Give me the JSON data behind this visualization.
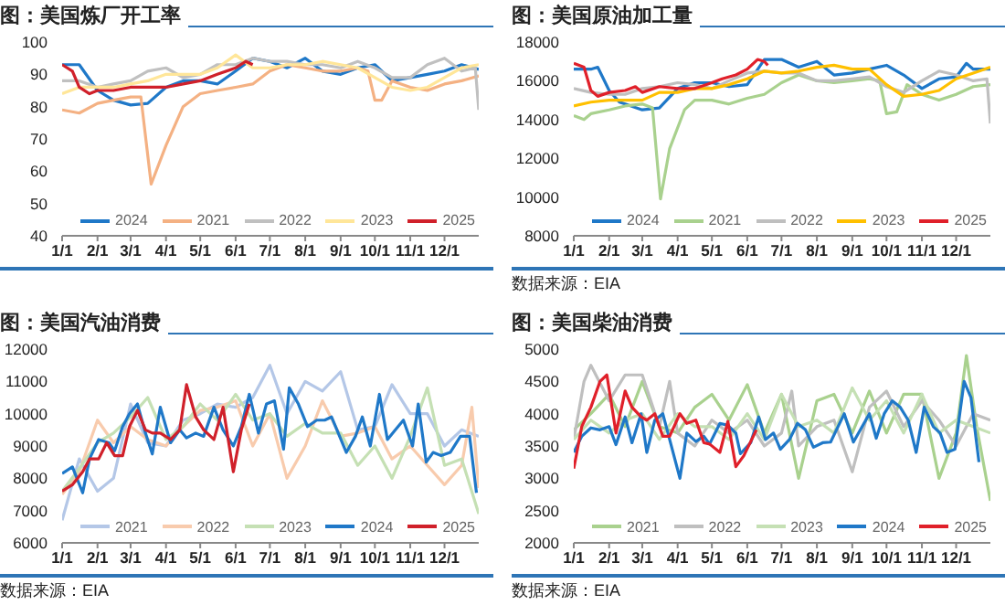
{
  "chart_data": [
    {
      "type": "line",
      "title": "图：美国炼厂开工率",
      "xlim": [
        "--01-01",
        "--12-31"
      ],
      "xticks": [
        {
          "value": "--01-01",
          "label": "1/1"
        },
        {
          "value": "--02-01",
          "label": "2/1"
        },
        {
          "value": "--03-01",
          "label": "3/1"
        },
        {
          "value": "--04-01",
          "label": "4/1"
        },
        {
          "value": "--05-01",
          "label": "5/1"
        },
        {
          "value": "--06-01",
          "label": "6/1"
        },
        {
          "value": "--07-01",
          "label": "7/1"
        },
        {
          "value": "--08-01",
          "label": "8/1"
        },
        {
          "value": "--09-01",
          "label": "9/1"
        },
        {
          "value": "--10-01",
          "label": "10/1"
        },
        {
          "value": "--11-01",
          "label": "11/1"
        },
        {
          "value": "--12-01",
          "label": "12/1"
        }
      ],
      "ylim": [
        40,
        100
      ],
      "yticks": [
        40,
        50,
        60,
        70,
        80,
        90,
        100
      ],
      "legend": "bottom",
      "series": [
        {
          "name": "2024",
          "color": "#1f78c8",
          "x": [
            "--01-01",
            "--01-16",
            "--02-01",
            "--02-15",
            "--03-01",
            "--03-16",
            "--04-01",
            "--04-16",
            "--05-01",
            "--05-16",
            "--06-01",
            "--06-16",
            "--07-01",
            "--07-16",
            "--08-01",
            "--08-16",
            "--09-01",
            "--09-16",
            "--10-01",
            "--10-16",
            "--11-01",
            "--11-16",
            "--12-01",
            "--12-16",
            "--12-31"
          ],
          "values": [
            93,
            93,
            85,
            82,
            80.5,
            81,
            86,
            88,
            88,
            87,
            91,
            95,
            94,
            92,
            95,
            91,
            90,
            92,
            93,
            88,
            89,
            90,
            91,
            93,
            91.5
          ]
        },
        {
          "name": "2021",
          "color": "#f4b183",
          "x": [
            "--01-01",
            "--01-16",
            "--02-01",
            "--02-15",
            "--03-01",
            "--03-10",
            "--03-19",
            "--04-01",
            "--04-16",
            "--05-01",
            "--05-16",
            "--06-01",
            "--06-16",
            "--07-01",
            "--07-16",
            "--08-01",
            "--08-16",
            "--09-01",
            "--09-16",
            "--09-25",
            "--10-01",
            "--10-07",
            "--10-16",
            "--11-01",
            "--11-16",
            "--12-01",
            "--12-16",
            "--12-31"
          ],
          "values": [
            79,
            78,
            81,
            82,
            83,
            83,
            56,
            68,
            80,
            84,
            85,
            86,
            87,
            91,
            93,
            92,
            91,
            91,
            92,
            91,
            82,
            82,
            88,
            86,
            85,
            87,
            88,
            89.5
          ]
        },
        {
          "name": "2022",
          "color": "#c0c0c0",
          "x": [
            "--01-01",
            "--01-16",
            "--02-01",
            "--02-15",
            "--03-01",
            "--03-16",
            "--04-01",
            "--04-16",
            "--05-01",
            "--05-16",
            "--06-01",
            "--06-16",
            "--07-01",
            "--07-16",
            "--08-01",
            "--08-16",
            "--09-01",
            "--09-16",
            "--10-01",
            "--10-16",
            "--11-01",
            "--11-16",
            "--12-01",
            "--12-16",
            "--12-28",
            "--12-31"
          ],
          "values": [
            88,
            88,
            86,
            87,
            88,
            91,
            92,
            89,
            90,
            93,
            93,
            95,
            94,
            94,
            93,
            93,
            92,
            94,
            92,
            89,
            89,
            93,
            95,
            91,
            92,
            79
          ]
        },
        {
          "name": "2023",
          "color": "#ffe699",
          "x": [
            "--01-01",
            "--01-16",
            "--02-01",
            "--02-15",
            "--03-01",
            "--03-16",
            "--04-01",
            "--04-16",
            "--05-01",
            "--05-16",
            "--06-01",
            "--06-16",
            "--07-01",
            "--07-16",
            "--08-01",
            "--08-16",
            "--09-01",
            "--09-16",
            "--10-01",
            "--10-16",
            "--11-01",
            "--11-16",
            "--12-01",
            "--12-16",
            "--12-31"
          ],
          "values": [
            84,
            86,
            86,
            86,
            87,
            88,
            90,
            90,
            90,
            92,
            96,
            92,
            92,
            93,
            93,
            94,
            93,
            92,
            89,
            86,
            85,
            86,
            89,
            92,
            93
          ]
        },
        {
          "name": "2025",
          "color": "#d0202a",
          "x": [
            "--01-01",
            "--01-10",
            "--01-16",
            "--01-25",
            "--02-01",
            "--02-15",
            "--03-01",
            "--03-16",
            "--04-01",
            "--04-16",
            "--05-01",
            "--05-16",
            "--06-01",
            "--06-10",
            "--06-16"
          ],
          "values": [
            93,
            91,
            86,
            84,
            85,
            85,
            86,
            86,
            86,
            87,
            88,
            90,
            92,
            94,
            93
          ]
        }
      ]
    },
    {
      "type": "line",
      "title": "图：美国原油加工量",
      "annotations": [
        "数据来源：EIA"
      ],
      "xlim": [
        "--01-01",
        "--12-31"
      ],
      "xticks": [
        {
          "value": "--01-01",
          "label": "1/1"
        },
        {
          "value": "--02-01",
          "label": "2/1"
        },
        {
          "value": "--03-01",
          "label": "3/1"
        },
        {
          "value": "--04-01",
          "label": "4/1"
        },
        {
          "value": "--05-01",
          "label": "5/1"
        },
        {
          "value": "--06-01",
          "label": "6/1"
        },
        {
          "value": "--07-01",
          "label": "7/1"
        },
        {
          "value": "--08-01",
          "label": "8/1"
        },
        {
          "value": "--09-01",
          "label": "9/1"
        },
        {
          "value": "--10-01",
          "label": "10/1"
        },
        {
          "value": "--11-01",
          "label": "11/1"
        },
        {
          "value": "--12-01",
          "label": "12/1"
        }
      ],
      "ylim": [
        8000,
        18000
      ],
      "yticks": [
        8000,
        10000,
        12000,
        14000,
        16000,
        18000
      ],
      "legend": "bottom",
      "series": [
        {
          "name": "2024",
          "color": "#1f78c8",
          "x": [
            "--01-01",
            "--01-16",
            "--01-22",
            "--02-01",
            "--02-10",
            "--02-15",
            "--03-01",
            "--03-16",
            "--04-01",
            "--04-16",
            "--05-01",
            "--05-16",
            "--06-01",
            "--06-16",
            "--07-01",
            "--07-16",
            "--08-01",
            "--08-16",
            "--09-01",
            "--09-16",
            "--10-01",
            "--10-16",
            "--11-01",
            "--11-16",
            "--12-01",
            "--12-10",
            "--12-16",
            "--12-31"
          ],
          "values": [
            16600,
            16600,
            16700,
            15500,
            14900,
            14800,
            14500,
            14600,
            15600,
            15900,
            15900,
            15700,
            15800,
            17100,
            17100,
            16700,
            17000,
            16300,
            16400,
            16600,
            16800,
            16300,
            15600,
            16100,
            16200,
            16900,
            16600,
            16600
          ]
        },
        {
          "name": "2021",
          "color": "#a9d18e",
          "x": [
            "--01-01",
            "--01-10",
            "--01-16",
            "--02-01",
            "--02-15",
            "--03-01",
            "--03-10",
            "--03-17",
            "--03-25",
            "--04-07",
            "--04-16",
            "--05-01",
            "--05-16",
            "--06-01",
            "--06-16",
            "--07-01",
            "--07-16",
            "--08-01",
            "--08-16",
            "--09-01",
            "--09-16",
            "--09-25",
            "--10-01",
            "--10-10",
            "--10-19",
            "--11-01",
            "--11-16",
            "--12-01",
            "--12-16",
            "--12-31"
          ],
          "values": [
            14200,
            14000,
            14300,
            14500,
            14700,
            14800,
            14600,
            9900,
            12500,
            14500,
            15000,
            15000,
            14800,
            15100,
            15300,
            15900,
            16300,
            16000,
            15900,
            16000,
            16100,
            16000,
            14300,
            14400,
            15800,
            15300,
            15000,
            15300,
            15700,
            15800
          ]
        },
        {
          "name": "2022",
          "color": "#bfbfbf",
          "x": [
            "--01-01",
            "--01-16",
            "--02-01",
            "--02-15",
            "--03-01",
            "--03-16",
            "--04-01",
            "--04-16",
            "--05-01",
            "--05-16",
            "--06-01",
            "--06-16",
            "--07-01",
            "--07-16",
            "--08-01",
            "--08-16",
            "--09-01",
            "--09-16",
            "--10-01",
            "--10-16",
            "--11-01",
            "--11-16",
            "--12-01",
            "--12-16",
            "--12-28",
            "--12-31"
          ],
          "values": [
            15600,
            15400,
            15300,
            15300,
            15600,
            15700,
            15900,
            15800,
            15600,
            16000,
            16400,
            16500,
            16400,
            16400,
            16000,
            16000,
            16100,
            16200,
            15700,
            15400,
            16000,
            16500,
            16300,
            16000,
            16100,
            13800
          ]
        },
        {
          "name": "2023",
          "color": "#ffc000",
          "x": [
            "--01-01",
            "--01-16",
            "--02-01",
            "--02-15",
            "--03-01",
            "--03-16",
            "--04-01",
            "--04-16",
            "--05-01",
            "--05-16",
            "--06-01",
            "--06-16",
            "--07-01",
            "--07-16",
            "--08-01",
            "--08-16",
            "--09-01",
            "--09-16",
            "--10-01",
            "--10-16",
            "--11-01",
            "--11-16",
            "--12-01",
            "--12-16",
            "--12-31"
          ],
          "values": [
            14700,
            14900,
            15000,
            15000,
            15000,
            15400,
            15400,
            15600,
            15600,
            15800,
            16100,
            16500,
            16400,
            16500,
            16700,
            16800,
            16600,
            16600,
            15800,
            15200,
            15300,
            15500,
            16100,
            16400,
            16700
          ]
        },
        {
          "name": "2025",
          "color": "#e0202a",
          "x": [
            "--01-01",
            "--01-10",
            "--01-16",
            "--01-22",
            "--02-01",
            "--02-15",
            "--02-24",
            "--03-01",
            "--03-16",
            "--04-01",
            "--04-16",
            "--05-01",
            "--05-10",
            "--05-22",
            "--06-01",
            "--06-10",
            "--06-16",
            "--06-19"
          ],
          "values": [
            16900,
            16700,
            15500,
            15200,
            15400,
            15500,
            15700,
            15400,
            15700,
            15600,
            15600,
            15900,
            16100,
            16300,
            16600,
            17100,
            17000,
            16800
          ]
        }
      ]
    },
    {
      "type": "line",
      "title": "图：美国汽油消费",
      "annotations": [
        "数据来源：EIA"
      ],
      "xlim": [
        "--01-01",
        "--12-31"
      ],
      "xticks": [
        {
          "value": "--01-01",
          "label": "1/1"
        },
        {
          "value": "--02-01",
          "label": "2/1"
        },
        {
          "value": "--03-01",
          "label": "3/1"
        },
        {
          "value": "--04-01",
          "label": "4/1"
        },
        {
          "value": "--05-01",
          "label": "5/1"
        },
        {
          "value": "--06-01",
          "label": "6/1"
        },
        {
          "value": "--07-01",
          "label": "7/1"
        },
        {
          "value": "--08-01",
          "label": "8/1"
        },
        {
          "value": "--09-01",
          "label": "9/1"
        },
        {
          "value": "--10-01",
          "label": "10/1"
        },
        {
          "value": "--11-01",
          "label": "11/1"
        },
        {
          "value": "--12-01",
          "label": "12/1"
        }
      ],
      "ylim": [
        6000,
        12000
      ],
      "yticks": [
        6000,
        7000,
        8000,
        9000,
        10000,
        11000,
        12000
      ],
      "legend": "bottom",
      "series": [
        {
          "name": "2021",
          "color": "#b4c7e7",
          "x": [
            "--01-01",
            "--01-16",
            "--02-01",
            "--02-15",
            "--03-01",
            "--03-16",
            "--04-01",
            "--04-16",
            "--05-01",
            "--05-16",
            "--06-01",
            "--06-16",
            "--07-01",
            "--07-16",
            "--08-01",
            "--08-16",
            "--09-01",
            "--09-16",
            "--10-01",
            "--10-16",
            "--11-01",
            "--11-16",
            "--12-01",
            "--12-16",
            "--12-31"
          ],
          "values": [
            6700,
            8600,
            7600,
            8000,
            10300,
            9100,
            9000,
            9800,
            10000,
            10300,
            10200,
            10500,
            11500,
            10000,
            11000,
            10700,
            11300,
            9500,
            9600,
            10900,
            10000,
            10000,
            9000,
            9500,
            9300
          ]
        },
        {
          "name": "2022",
          "color": "#f8cbad",
          "x": [
            "--01-01",
            "--01-16",
            "--02-01",
            "--02-15",
            "--03-01",
            "--03-16",
            "--04-01",
            "--04-16",
            "--05-01",
            "--05-16",
            "--06-01",
            "--06-16",
            "--07-01",
            "--07-16",
            "--08-01",
            "--08-16",
            "--09-01",
            "--09-16",
            "--10-01",
            "--10-16",
            "--11-01",
            "--11-16",
            "--12-01",
            "--12-16",
            "--12-25",
            "--12-31"
          ],
          "values": [
            7500,
            8200,
            9800,
            9100,
            9600,
            9200,
            9000,
            9600,
            10100,
            10200,
            10400,
            9000,
            10000,
            8000,
            9000,
            10400,
            9300,
            9400,
            9600,
            8600,
            9000,
            8400,
            7800,
            8400,
            10200,
            7700
          ]
        },
        {
          "name": "2023",
          "color": "#c5e0b4",
          "x": [
            "--01-01",
            "--01-16",
            "--02-01",
            "--02-15",
            "--03-01",
            "--03-16",
            "--04-01",
            "--04-16",
            "--05-01",
            "--05-16",
            "--06-01",
            "--06-16",
            "--07-01",
            "--07-16",
            "--08-01",
            "--08-16",
            "--09-01",
            "--09-16",
            "--10-01",
            "--10-16",
            "--11-01",
            "--11-16",
            "--12-01",
            "--12-16",
            "--12-31"
          ],
          "values": [
            7600,
            8300,
            9100,
            9400,
            9900,
            10500,
            9200,
            9600,
            10300,
            9800,
            10600,
            9800,
            10000,
            9300,
            9700,
            9400,
            9400,
            8400,
            9000,
            8000,
            9300,
            10800,
            8400,
            8600,
            6900
          ]
        },
        {
          "name": "2024",
          "color": "#1f78c8",
          "x": [
            "--01-01",
            "--01-10",
            "--01-19",
            "--01-25",
            "--02-02",
            "--02-11",
            "--02-16",
            "--02-23",
            "--02-29",
            "--03-07",
            "--03-14",
            "--03-20",
            "--03-27",
            "--04-05",
            "--04-13",
            "--04-19",
            "--04-27",
            "--05-04",
            "--05-13",
            "--05-21",
            "--05-30",
            "--06-06",
            "--06-13",
            "--06-21",
            "--06-28",
            "--07-05",
            "--07-13",
            "--07-18",
            "--07-26",
            "--08-03",
            "--08-11",
            "--08-18",
            "--08-24",
            "--09-06",
            "--09-14",
            "--09-20",
            "--09-27",
            "--10-05",
            "--10-12",
            "--10-19",
            "--10-26",
            "--11-03",
            "--11-08",
            "--11-15",
            "--11-21",
            "--11-28",
            "--12-06",
            "--12-15",
            "--12-23",
            "--12-29"
          ],
          "values": [
            8150,
            8350,
            7550,
            8600,
            9200,
            9100,
            8850,
            9600,
            10000,
            10300,
            9400,
            8750,
            10200,
            9100,
            9500,
            9250,
            9400,
            9300,
            10200,
            9500,
            9000,
            9600,
            10600,
            9400,
            10300,
            10400,
            8900,
            10800,
            10300,
            9600,
            9800,
            9800,
            9900,
            8800,
            9300,
            9900,
            9000,
            10600,
            9200,
            9500,
            9800,
            9000,
            10300,
            8500,
            8800,
            8700,
            8800,
            9300,
            9300,
            7550
          ]
        },
        {
          "name": "2025",
          "color": "#d0202a",
          "x": [
            "--01-01",
            "--01-10",
            "--01-19",
            "--01-25",
            "--02-02",
            "--02-09",
            "--02-16",
            "--02-23",
            "--02-29",
            "--03-07",
            "--03-14",
            "--03-20",
            "--03-27",
            "--04-05",
            "--04-13",
            "--04-19",
            "--04-27",
            "--05-04",
            "--05-13",
            "--05-21",
            "--05-30",
            "--06-06",
            "--06-13"
          ],
          "values": [
            7600,
            7800,
            8200,
            8600,
            8600,
            9100,
            8700,
            8700,
            9600,
            10100,
            9500,
            9400,
            9400,
            9200,
            9500,
            10900,
            9900,
            9500,
            9200,
            10200,
            8200,
            9500,
            10300
          ]
        }
      ]
    },
    {
      "type": "line",
      "title": "图：美国柴油消费",
      "annotations": [
        "数据来源：EIA"
      ],
      "xlim": [
        "--01-01",
        "--12-31"
      ],
      "xticks": [
        {
          "value": "--01-01",
          "label": "1/1"
        },
        {
          "value": "--02-01",
          "label": "2/1"
        },
        {
          "value": "--03-01",
          "label": "3/1"
        },
        {
          "value": "--04-01",
          "label": "4/1"
        },
        {
          "value": "--05-01",
          "label": "5/1"
        },
        {
          "value": "--06-01",
          "label": "6/1"
        },
        {
          "value": "--07-01",
          "label": "7/1"
        },
        {
          "value": "--08-01",
          "label": "8/1"
        },
        {
          "value": "--09-01",
          "label": "9/1"
        },
        {
          "value": "--10-01",
          "label": "10/1"
        },
        {
          "value": "--11-01",
          "label": "11/1"
        },
        {
          "value": "--12-01",
          "label": "12/1"
        }
      ],
      "ylim": [
        2000,
        5000
      ],
      "yticks": [
        2000,
        2500,
        3000,
        3500,
        4000,
        4500,
        5000
      ],
      "legend": "bottom",
      "series": [
        {
          "name": "2021",
          "color": "#a9d18e",
          "x": [
            "--01-01",
            "--01-16",
            "--02-01",
            "--02-15",
            "--03-01",
            "--03-16",
            "--04-01",
            "--04-16",
            "--05-01",
            "--05-16",
            "--06-01",
            "--06-16",
            "--07-01",
            "--07-16",
            "--08-01",
            "--08-16",
            "--09-01",
            "--09-16",
            "--10-01",
            "--10-16",
            "--11-01",
            "--11-16",
            "--12-01",
            "--12-10",
            "--12-19",
            "--12-31"
          ],
          "values": [
            3750,
            4000,
            4300,
            3800,
            4500,
            3800,
            3700,
            4100,
            4300,
            3900,
            4450,
            3700,
            4300,
            3000,
            4200,
            4300,
            3700,
            4350,
            3700,
            4300,
            4300,
            3000,
            3700,
            4900,
            3800,
            2650
          ]
        },
        {
          "name": "2022",
          "color": "#bfbfbf",
          "x": [
            "--01-01",
            "--01-10",
            "--01-16",
            "--02-01",
            "--02-15",
            "--03-01",
            "--03-16",
            "--03-25",
            "--04-01",
            "--04-16",
            "--05-01",
            "--05-16",
            "--06-01",
            "--06-16",
            "--07-01",
            "--07-10",
            "--07-16",
            "--08-01",
            "--08-16",
            "--09-01",
            "--09-16",
            "--10-01",
            "--10-16",
            "--11-01",
            "--11-16",
            "--12-01",
            "--12-16",
            "--12-31"
          ],
          "values": [
            3600,
            4500,
            4750,
            4200,
            4600,
            4600,
            3800,
            4500,
            3700,
            3500,
            3900,
            3700,
            3900,
            3500,
            3700,
            4350,
            3500,
            3800,
            3900,
            3100,
            4100,
            4350,
            3800,
            4200,
            3900,
            3500,
            4000,
            3900
          ]
        },
        {
          "name": "2023",
          "color": "#c5e0b4",
          "x": [
            "--01-01",
            "--01-16",
            "--02-01",
            "--02-15",
            "--03-01",
            "--03-16",
            "--04-01",
            "--04-16",
            "--05-01",
            "--05-16",
            "--06-01",
            "--06-16",
            "--07-01",
            "--07-16",
            "--08-01",
            "--08-16",
            "--09-01",
            "--09-16",
            "--10-01",
            "--10-16",
            "--11-01",
            "--11-16",
            "--12-01",
            "--12-16",
            "--12-31"
          ],
          "values": [
            3600,
            3900,
            3700,
            3900,
            4000,
            3600,
            4000,
            3800,
            3800,
            3600,
            4000,
            3600,
            4300,
            3800,
            3900,
            3700,
            4400,
            3900,
            4200,
            3700,
            4300,
            3700,
            3900,
            3800,
            3700
          ]
        },
        {
          "name": "2024",
          "color": "#1f78c8",
          "x": [
            "--01-01",
            "--01-08",
            "--01-16",
            "--01-24",
            "--02-01",
            "--02-07",
            "--02-15",
            "--02-21",
            "--02-29",
            "--03-05",
            "--03-12",
            "--03-19",
            "--03-25",
            "--04-03",
            "--04-09",
            "--04-17",
            "--04-24",
            "--04-29",
            "--05-08",
            "--05-15",
            "--05-22",
            "--05-26",
            "--06-04",
            "--06-11",
            "--06-17",
            "--06-24",
            "--06-30",
            "--07-08",
            "--07-15",
            "--07-22",
            "--07-29",
            "--08-06",
            "--08-13",
            "--08-25",
            "--09-02",
            "--09-09",
            "--09-16",
            "--09-22",
            "--09-29",
            "--10-06",
            "--10-13",
            "--10-20",
            "--10-27",
            "--11-03",
            "--11-11",
            "--11-17",
            "--11-23",
            "--11-30",
            "--12-08",
            "--12-14",
            "--12-21"
          ],
          "values": [
            3400,
            3650,
            3780,
            3750,
            3800,
            3520,
            3950,
            3550,
            4000,
            3400,
            3900,
            4000,
            3600,
            3000,
            3700,
            3570,
            3650,
            3530,
            3850,
            3820,
            3700,
            3380,
            3550,
            3950,
            3600,
            3700,
            3450,
            3600,
            3850,
            3750,
            3480,
            3550,
            3560,
            4000,
            3560,
            3780,
            4000,
            3620,
            4000,
            4200,
            4100,
            3900,
            3400,
            4100,
            3800,
            3700,
            3400,
            3450,
            4500,
            4250,
            3250
          ]
        },
        {
          "name": "2025",
          "color": "#e0202a",
          "x": [
            "--01-01",
            "--01-08",
            "--01-16",
            "--01-24",
            "--01-30",
            "--02-07",
            "--02-15",
            "--02-21",
            "--02-29",
            "--03-05",
            "--03-12",
            "--03-19",
            "--03-25",
            "--04-03",
            "--04-09",
            "--04-17",
            "--04-24",
            "--04-29",
            "--05-08",
            "--05-15",
            "--05-22",
            "--05-29",
            "--06-09"
          ],
          "values": [
            3150,
            3800,
            4100,
            4500,
            4600,
            3700,
            4350,
            4100,
            3950,
            3900,
            4000,
            3650,
            3650,
            4000,
            3850,
            3900,
            3550,
            3530,
            3400,
            3880,
            3180,
            3350,
            3750
          ]
        }
      ]
    }
  ]
}
